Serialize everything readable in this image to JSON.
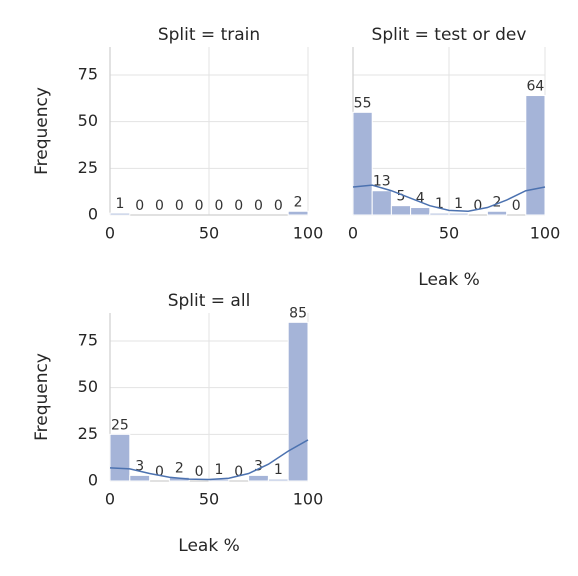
{
  "chart_data": [
    {
      "type": "histogram",
      "title": "Split = train",
      "ylabel": "Frequency",
      "bins": [
        0,
        10,
        20,
        30,
        40,
        50,
        60,
        70,
        80,
        90,
        100
      ],
      "values": [
        1,
        0,
        0,
        0,
        0,
        0,
        0,
        0,
        0,
        2
      ],
      "color": "#a5b4d8",
      "line_color": "#4c72b0",
      "xlim": [
        0,
        100
      ],
      "xticks": [
        0,
        50,
        100
      ],
      "ylim": [
        0,
        90
      ],
      "yticks": [
        0,
        25,
        50,
        75
      ],
      "grid": true,
      "show_yticklabels": true
    },
    {
      "type": "histogram",
      "title": "Split = test or dev",
      "xlabel": "Leak %",
      "bins": [
        0,
        10,
        20,
        30,
        40,
        50,
        60,
        70,
        80,
        90,
        100
      ],
      "values": [
        55,
        13,
        5,
        4,
        1,
        1,
        0,
        2,
        0,
        64
      ],
      "kde": {
        "x": [
          0,
          10,
          20,
          30,
          40,
          50,
          60,
          70,
          80,
          90,
          100
        ],
        "values": [
          15,
          16,
          13,
          9,
          5,
          2.5,
          2,
          4,
          8,
          13,
          15
        ]
      },
      "color": "#a5b4d8",
      "line_color": "#4c72b0",
      "xlim": [
        0,
        100
      ],
      "xticks": [
        0,
        50,
        100
      ],
      "ylim": [
        0,
        90
      ],
      "yticks": [
        0,
        25,
        50,
        75
      ],
      "grid": true,
      "show_yticklabels": false
    },
    {
      "type": "histogram",
      "title": "Split = all",
      "ylabel": "Frequency",
      "xlabel": "Leak %",
      "bins": [
        0,
        10,
        20,
        30,
        40,
        50,
        60,
        70,
        80,
        90,
        100
      ],
      "values": [
        25,
        3,
        0,
        2,
        0,
        1,
        0,
        3,
        1,
        85
      ],
      "kde": {
        "x": [
          0,
          10,
          20,
          30,
          40,
          50,
          60,
          70,
          80,
          90,
          100
        ],
        "values": [
          7,
          6.5,
          4,
          2,
          1,
          0.8,
          1.5,
          4,
          9,
          16,
          22
        ]
      },
      "color": "#a5b4d8",
      "line_color": "#4c72b0",
      "xlim": [
        0,
        100
      ],
      "xticks": [
        0,
        50,
        100
      ],
      "ylim": [
        0,
        90
      ],
      "yticks": [
        0,
        25,
        50,
        75
      ],
      "grid": true,
      "show_yticklabels": true
    }
  ]
}
